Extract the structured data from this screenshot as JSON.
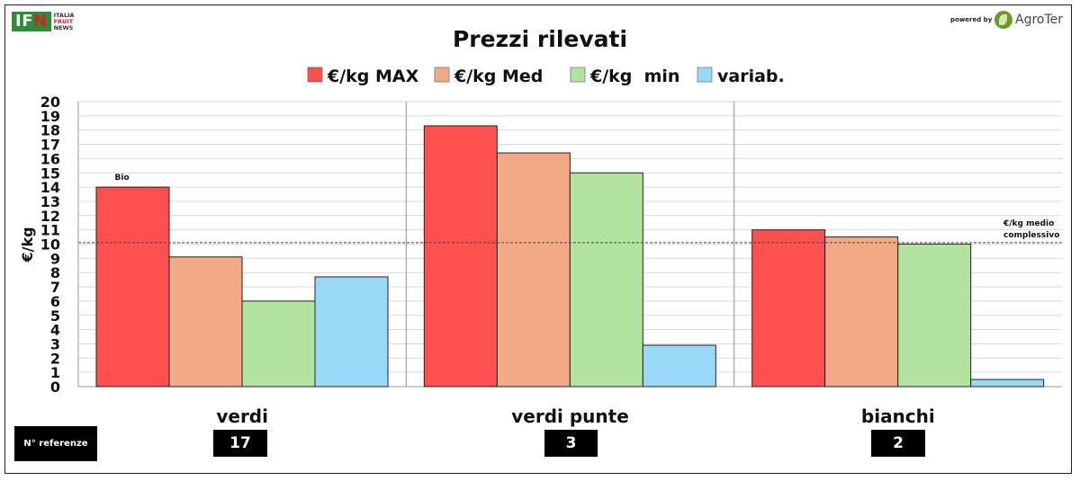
{
  "logos": {
    "ifn_left": "IF",
    "ifn_right": "N",
    "ifn_line1": "ITALIA",
    "ifn_line2": "FRUIT",
    "ifn_line3": "NEWS",
    "powered_by": "powered by",
    "agroter": "AgroTer"
  },
  "references": {
    "label": "N° referenze",
    "counts": [
      "17",
      "3",
      "2"
    ]
  },
  "chart_data": {
    "type": "bar",
    "title": "Prezzi rilevati",
    "ylabel": "€/kg",
    "xlabel": "",
    "ylim": [
      0,
      20
    ],
    "yticks": [
      0,
      1,
      2,
      3,
      4,
      5,
      6,
      7,
      8,
      9,
      10,
      11,
      12,
      13,
      14,
      15,
      16,
      17,
      18,
      19,
      20
    ],
    "categories": [
      "verdi",
      "verdi punte",
      "bianchi"
    ],
    "series": [
      {
        "name": "€/kg MAX",
        "color": "#ff5050",
        "values": [
          14.0,
          18.3,
          11.0
        ]
      },
      {
        "name": "€/kg Med",
        "color": "#f2a985",
        "values": [
          9.1,
          16.4,
          10.5
        ]
      },
      {
        "name": "€/kg  min",
        "color": "#b3e3a0",
        "values": [
          6.0,
          15.0,
          10.0
        ]
      },
      {
        "name": "variab.",
        "color": "#99d9f7",
        "values": [
          7.7,
          2.9,
          0.5
        ]
      }
    ],
    "reference_line": {
      "value": 10.1,
      "label_line1": "€/kg medio",
      "label_line2": "complessivo"
    },
    "annotations": [
      {
        "category": "verdi",
        "series": "€/kg MAX",
        "text": "Bio"
      }
    ],
    "legend_position": "top",
    "grid": true
  }
}
